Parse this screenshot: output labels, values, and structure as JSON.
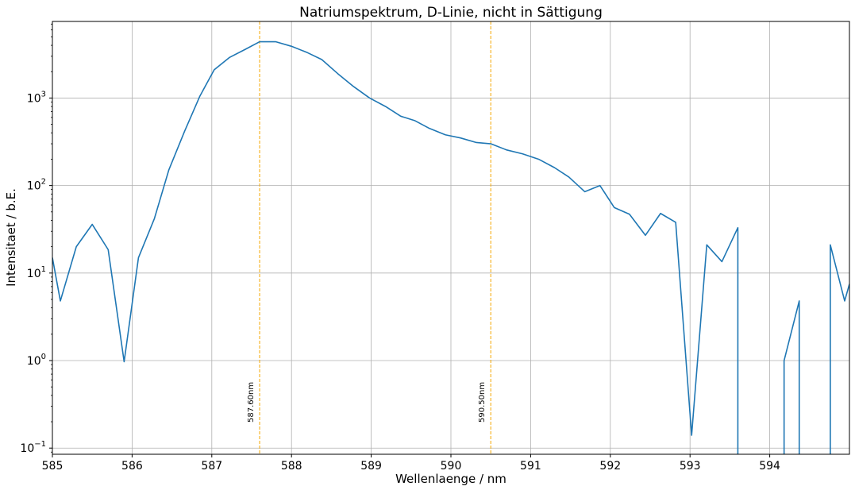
{
  "chart_data": {
    "type": "line",
    "title": "Natriumspektrum, D-Linie, nicht in Sättigung",
    "xlabel": "Wellenlaenge / nm",
    "ylabel": "Intensitaet / b.E.",
    "xlim": [
      585,
      595
    ],
    "ylim": [
      0.085,
      7500
    ],
    "yscale": "log",
    "grid": true,
    "x_ticks": [
      585,
      586,
      587,
      588,
      589,
      590,
      591,
      592,
      593,
      594
    ],
    "x_tick_labels": [
      "585",
      "586",
      "587",
      "588",
      "589",
      "590",
      "591",
      "592",
      "593",
      "594"
    ],
    "y_ticks": [
      {
        "value": 0.1,
        "base": "10",
        "exp": "−1"
      },
      {
        "value": 1,
        "base": "10",
        "exp": "0"
      },
      {
        "value": 10,
        "base": "10",
        "exp": "1"
      },
      {
        "value": 100,
        "base": "10",
        "exp": "2"
      },
      {
        "value": 1000,
        "base": "10",
        "exp": "3"
      }
    ],
    "vlines": [
      {
        "x": 587.6,
        "label": "587.60nm",
        "color": "#f5a800"
      },
      {
        "x": 590.5,
        "label": "590.50nm",
        "color": "#f5a800"
      }
    ],
    "series": [
      {
        "color": "#1f77b4",
        "segments": [
          [
            [
              585.0,
              15
            ],
            [
              585.1,
              4.8
            ],
            [
              585.3,
              20
            ],
            [
              585.5,
              36
            ],
            [
              585.7,
              18.5
            ],
            [
              585.9,
              0.97
            ],
            [
              586.08,
              15
            ],
            [
              586.28,
              42
            ],
            [
              586.46,
              150
            ],
            [
              586.66,
              420
            ],
            [
              586.85,
              1050
            ],
            [
              587.03,
              2100
            ],
            [
              587.22,
              2900
            ],
            [
              587.42,
              3600
            ],
            [
              587.6,
              4400
            ],
            [
              587.8,
              4400
            ],
            [
              588.0,
              3900
            ],
            [
              588.2,
              3300
            ],
            [
              588.38,
              2750
            ],
            [
              588.58,
              1900
            ],
            [
              588.78,
              1350
            ],
            [
              588.98,
              1000
            ],
            [
              589.18,
              800
            ],
            [
              589.37,
              620
            ],
            [
              589.55,
              550
            ],
            [
              589.73,
              450
            ],
            [
              589.93,
              380
            ],
            [
              590.12,
              350
            ],
            [
              590.32,
              310
            ],
            [
              590.5,
              300
            ],
            [
              590.7,
              255
            ],
            [
              590.9,
              230
            ],
            [
              591.1,
              200
            ],
            [
              591.3,
              160
            ],
            [
              591.48,
              125
            ],
            [
              591.68,
              85
            ],
            [
              591.87,
              100
            ],
            [
              592.05,
              56
            ],
            [
              592.24,
              47
            ],
            [
              592.44,
              27
            ],
            [
              592.63,
              48
            ],
            [
              592.82,
              38
            ],
            [
              593.02,
              0.14
            ],
            [
              593.21,
              21
            ],
            [
              593.4,
              13.5
            ],
            [
              593.6,
              33
            ],
            [
              593.6,
              0.05
            ]
          ],
          [
            [
              594.18,
              0.05
            ],
            [
              594.18,
              1.0
            ],
            [
              594.37,
              4.8
            ],
            [
              594.37,
              0.05
            ]
          ],
          [
            [
              594.76,
              0.05
            ],
            [
              594.76,
              21
            ],
            [
              594.94,
              4.8
            ],
            [
              595.0,
              7.5
            ]
          ]
        ]
      }
    ]
  }
}
